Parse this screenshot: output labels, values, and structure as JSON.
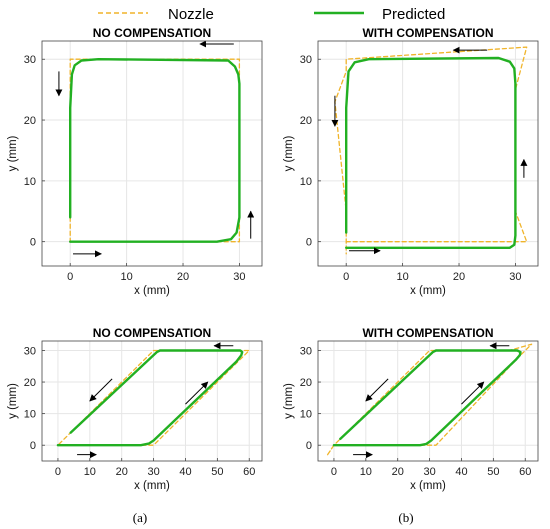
{
  "legend": {
    "position": "top",
    "items": [
      {
        "label": "Nozzle",
        "color": "#f0b42a",
        "dash": true
      },
      {
        "label": "Predicted",
        "color": "#22b022",
        "dash": false
      }
    ]
  },
  "captions": [
    "(a)",
    "(b)"
  ],
  "chart_data": [
    {
      "type": "line",
      "title": "NO COMPENSATION",
      "xlabel": "x (mm)",
      "ylabel": "y (mm)",
      "xlim": [
        -5,
        34
      ],
      "ylim": [
        -4,
        33
      ],
      "xticks": [
        0,
        10,
        20,
        30
      ],
      "yticks": [
        0,
        10,
        20,
        30
      ],
      "grid": true,
      "series": [
        {
          "name": "Nozzle",
          "color": "#f0b42a",
          "dash": true,
          "x": [
            0,
            30,
            30,
            0,
            0
          ],
          "y": [
            0,
            0,
            30,
            30,
            0
          ]
        },
        {
          "name": "Predicted",
          "color": "#22b022",
          "dash": false,
          "x": [
            0,
            26,
            28.5,
            29.5,
            30,
            30,
            29.8,
            29.2,
            28,
            5,
            2,
            0.8,
            0.3,
            0,
            0
          ],
          "y": [
            0,
            0,
            0.4,
            1.5,
            4,
            26,
            27.5,
            28.8,
            29.8,
            30,
            29.8,
            29,
            27.5,
            22,
            4
          ]
        }
      ],
      "arrows": [
        {
          "from": [
            0.5,
            -2
          ],
          "to": [
            5.5,
            -2
          ]
        },
        {
          "from": [
            32,
            0.5
          ],
          "to": [
            32,
            5
          ]
        },
        {
          "from": [
            29,
            32.5
          ],
          "to": [
            23,
            32.5
          ]
        },
        {
          "from": [
            -2,
            28
          ],
          "to": [
            -2,
            24
          ]
        }
      ]
    },
    {
      "type": "line",
      "title": "WITH COMPENSATION",
      "xlabel": "x (mm)",
      "ylabel": "y (mm)",
      "xlim": [
        -5,
        34
      ],
      "ylim": [
        -4,
        33
      ],
      "xticks": [
        0,
        10,
        20,
        30
      ],
      "yticks": [
        0,
        10,
        20,
        30
      ],
      "grid": true,
      "series": [
        {
          "name": "Nozzle",
          "color": "#f0b42a",
          "dash": true,
          "x": [
            0,
            30,
            32,
            30,
            30,
            32,
            0,
            0,
            -2,
            0,
            0
          ],
          "y": [
            0,
            0,
            0,
            5,
            25,
            32,
            30,
            28,
            23,
            5,
            -2
          ]
        },
        {
          "name": "Predicted",
          "color": "#22b022",
          "dash": false,
          "x": [
            0,
            29,
            29.8,
            30,
            30,
            30,
            29.8,
            29,
            27,
            4,
            1.5,
            0.4,
            0,
            0,
            0
          ],
          "y": [
            -1,
            -1,
            -0.5,
            1,
            5,
            26,
            28.5,
            29.6,
            30.2,
            30,
            29.5,
            28,
            22,
            5,
            1.5
          ]
        }
      ],
      "arrows": [
        {
          "from": [
            0.5,
            -1.5
          ],
          "to": [
            6,
            -1.5
          ]
        },
        {
          "from": [
            31.5,
            10.5
          ],
          "to": [
            31.5,
            13.5
          ]
        },
        {
          "from": [
            25,
            31.5
          ],
          "to": [
            19,
            31.5
          ]
        },
        {
          "from": [
            -2,
            24
          ],
          "to": [
            -2,
            19
          ]
        }
      ]
    },
    {
      "type": "line",
      "title": "NO COMPENSATION",
      "xlabel": "x (mm)",
      "ylabel": "y (mm)",
      "xlim": [
        -5,
        64
      ],
      "ylim": [
        -5,
        33
      ],
      "xticks": [
        0,
        10,
        20,
        30,
        40,
        50,
        60
      ],
      "yticks": [
        0,
        10,
        20,
        30
      ],
      "grid": true,
      "series": [
        {
          "name": "Nozzle",
          "color": "#f0b42a",
          "dash": true,
          "x": [
            0,
            30,
            60,
            30,
            0
          ],
          "y": [
            0,
            0,
            30,
            30,
            0
          ]
        },
        {
          "name": "Predicted",
          "color": "#22b022",
          "dash": false,
          "x": [
            0,
            26,
            28.5,
            30,
            56,
            57.5,
            57.8,
            57.2,
            55,
            32,
            31,
            4
          ],
          "y": [
            0,
            0,
            0.5,
            1.5,
            26.5,
            28.5,
            29.5,
            30,
            30,
            30,
            29.5,
            4
          ]
        }
      ],
      "arrows": [
        {
          "from": [
            6,
            -3
          ],
          "to": [
            12,
            -3
          ]
        },
        {
          "from": [
            40,
            13
          ],
          "to": [
            47,
            20
          ]
        },
        {
          "from": [
            55,
            31.5
          ],
          "to": [
            49,
            31.5
          ]
        },
        {
          "from": [
            17,
            21
          ],
          "to": [
            10,
            14
          ]
        }
      ]
    },
    {
      "type": "line",
      "title": "WITH COMPENSATION",
      "xlabel": "x (mm)",
      "ylabel": "y (mm)",
      "xlim": [
        -5,
        64
      ],
      "ylim": [
        -5,
        33
      ],
      "xticks": [
        0,
        10,
        20,
        30,
        40,
        50,
        60
      ],
      "yticks": [
        0,
        10,
        20,
        30
      ],
      "grid": true,
      "series": [
        {
          "name": "Nozzle",
          "color": "#f0b42a",
          "dash": true,
          "x": [
            -2,
            0,
            30,
            32,
            58,
            62,
            55,
            30,
            0,
            -2
          ],
          "y": [
            -3,
            0,
            0,
            0,
            28,
            32,
            30,
            30,
            0,
            -3
          ]
        },
        {
          "name": "Predicted",
          "color": "#22b022",
          "dash": false,
          "x": [
            0,
            27,
            29,
            30.5,
            57,
            58.3,
            58.5,
            57.5,
            55,
            32,
            31,
            2
          ],
          "y": [
            0,
            0,
            0.4,
            1.5,
            27,
            28.5,
            29.5,
            30,
            30,
            30,
            29.5,
            2
          ]
        }
      ],
      "arrows": [
        {
          "from": [
            6,
            -3
          ],
          "to": [
            12,
            -3
          ]
        },
        {
          "from": [
            40,
            13
          ],
          "to": [
            47,
            20
          ]
        },
        {
          "from": [
            55,
            31.5
          ],
          "to": [
            49,
            31.5
          ]
        },
        {
          "from": [
            17,
            21
          ],
          "to": [
            10,
            14
          ]
        }
      ]
    }
  ]
}
